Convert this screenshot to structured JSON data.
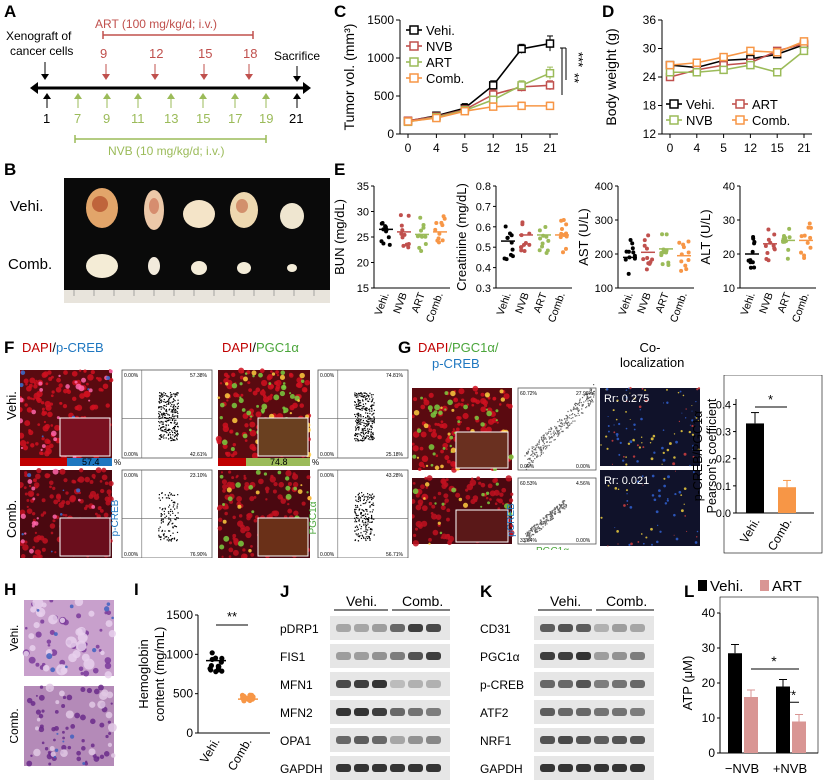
{
  "panels": {
    "A": {
      "label": "A",
      "xenograft": [
        "Xenograft of",
        "cancer cells"
      ],
      "art_label": "ART (100 mg/kg/d; i.v.)",
      "art_days": [
        "9",
        "12",
        "15",
        "18"
      ],
      "sacrifice": "Sacrifice",
      "timeline_black": [
        "1",
        "21"
      ],
      "nvb_days": [
        "7",
        "9",
        "11",
        "13",
        "15",
        "17",
        "19"
      ],
      "nvb_label": "NVB (10 mg/kg/d; i.v.)",
      "colors": {
        "art": "#c0504d",
        "nvb": "#9bbb59",
        "black": "#000000"
      }
    },
    "B": {
      "label": "B",
      "rows": [
        "Vehi.",
        "Comb."
      ]
    },
    "C": {
      "label": "C",
      "chart_data": {
        "type": "line",
        "ylabel": "Tumor vol. (mm³)",
        "categories": [
          "0",
          "4",
          "5",
          "12",
          "15",
          "21"
        ],
        "yticks": [
          "0",
          "500",
          "1000",
          "1500"
        ],
        "ylim": [
          0,
          1500
        ],
        "series": [
          {
            "name": "Vehi.",
            "color": "#000000",
            "values": [
              170,
              240,
              340,
              640,
              1120,
              1190
            ],
            "err": [
              40,
              50,
              60,
              60,
              60,
              100
            ]
          },
          {
            "name": "NVB",
            "color": "#c0504d",
            "values": [
              175,
              230,
              320,
              520,
              620,
              640
            ],
            "err": [
              40,
              40,
              50,
              60,
              60,
              60
            ]
          },
          {
            "name": "ART",
            "color": "#9bbb59",
            "values": [
              160,
              220,
              310,
              450,
              640,
              800
            ],
            "err": [
              40,
              40,
              50,
              50,
              60,
              80
            ]
          },
          {
            "name": "Comb.",
            "color": "#f79646",
            "values": [
              165,
              210,
              300,
              360,
              370,
              370
            ],
            "err": [
              40,
              40,
              40,
              50,
              50,
              50
            ]
          }
        ],
        "significance": [
          "**",
          "***"
        ],
        "legend": "top-left"
      }
    },
    "D": {
      "label": "D",
      "chart_data": {
        "type": "line",
        "ylabel": "Body weight (g)",
        "categories": [
          "0",
          "4",
          "5",
          "12",
          "15",
          "21"
        ],
        "yticks": [
          "12",
          "18",
          "24",
          "30",
          "36"
        ],
        "ylim": [
          12,
          36
        ],
        "series": [
          {
            "name": "Vehi.",
            "color": "#000000",
            "values": [
              26.5,
              26.0,
              27.5,
              27.8,
              28.8,
              30.8
            ]
          },
          {
            "name": "ART",
            "color": "#c0504d",
            "values": [
              24.0,
              25.5,
              26.5,
              27.0,
              29.5,
              31.0
            ]
          },
          {
            "name": "NVB",
            "color": "#9bbb59",
            "values": [
              25.0,
              25.0,
              25.5,
              26.5,
              25.0,
              29.5
            ]
          },
          {
            "name": "Comb.",
            "color": "#f79646",
            "values": [
              26.5,
              27.0,
              28.2,
              29.5,
              29.2,
              31.5
            ]
          }
        ],
        "legend": "bottom"
      }
    },
    "E": {
      "label": "E",
      "groups": [
        "Vehi.",
        "NVB",
        "ART",
        "Comb."
      ],
      "group_colors": [
        "#000000",
        "#c0504d",
        "#9bbb59",
        "#f79646"
      ],
      "subplots": [
        {
          "ylabel": "BUN (mg/dL)",
          "yticks": [
            "15",
            "20",
            "25",
            "30",
            "35"
          ],
          "ylim": [
            15,
            35
          ],
          "means": [
            26.5,
            26.0,
            25.5,
            26.0
          ]
        },
        {
          "ylabel": "Creatinine (mg/dL)",
          "yticks": [
            "0.3",
            "0.4",
            "0.5",
            "0.6",
            "0.7",
            "0.8"
          ],
          "ylim": [
            0.3,
            0.8
          ],
          "means": [
            0.53,
            0.56,
            0.56,
            0.56
          ]
        },
        {
          "ylabel": "AST (U/L)",
          "yticks": [
            "100",
            "200",
            "300",
            "400"
          ],
          "ylim": [
            100,
            400
          ],
          "means": [
            190,
            205,
            215,
            195
          ]
        },
        {
          "ylabel": "ALT (U/L)",
          "yticks": [
            "10",
            "20",
            "30",
            "40"
          ],
          "ylim": [
            10,
            40
          ],
          "means": [
            20,
            23,
            24,
            24
          ]
        }
      ]
    },
    "F": {
      "label": "F",
      "left_title_dapi": "DAPI",
      "left_title_slash": "/",
      "left_title_marker": "p-CREB",
      "right_title_dapi": "DAPI",
      "right_title_slash": "/",
      "right_title_marker": "PGC1α",
      "rows": [
        "Vehi.",
        "Comb."
      ],
      "bar_values": [
        "57.4",
        "23.1",
        "74.8",
        "43.3"
      ],
      "pct": "%",
      "scatter_corner_labels": [
        "0.00%",
        "57.38%",
        "0.00%",
        "42.61%",
        "0.00%",
        "23.10%",
        "0.00%",
        "76.90%",
        "0.00%",
        "74.81%",
        "0.00%",
        "25.18%",
        "0.00%",
        "43.28%",
        "0.00%",
        "56.71%"
      ],
      "axis_y": [
        "p-CREB",
        "PGC1α"
      ],
      "axis_x": "DAPI"
    },
    "G": {
      "label": "G",
      "title_dapi": "DAPI",
      "title_pgc": "/PGC1α/",
      "title_creb": "p-CREB",
      "coloc_title": [
        "Co-",
        "localization"
      ],
      "rr": [
        "Rr: 0.275",
        "Rr: 0.021"
      ],
      "axis_y": "pCREB",
      "axis_x": "PGC1α",
      "scatter_corner_labels": [
        "60.72%",
        "27.96%",
        "0.00%",
        "0.00%",
        "60.53%",
        "4.56%",
        "33.54%",
        "0.00%"
      ],
      "chart_data": {
        "type": "bar",
        "ylabel": "p-CREB/PGC1α Pearson's coefficient",
        "categories": [
          "Vehi.",
          "Comb."
        ],
        "values": [
          0.33,
          0.095
        ],
        "err": [
          0.04,
          0.025
        ],
        "colors": [
          "#000000",
          "#f79646"
        ],
        "yticks": [
          "0.0",
          "0.1",
          "0.2",
          "0.3",
          "0.4"
        ],
        "ylim": [
          0,
          0.42
        ],
        "significance": "*"
      }
    },
    "H": {
      "label": "H",
      "rows": [
        "Vehi.",
        "Comb."
      ]
    },
    "I": {
      "label": "I",
      "chart_data": {
        "type": "scatter",
        "ylabel": "Hemoglobin content (mg/mL)",
        "categories": [
          "Vehi.",
          "Comb."
        ],
        "yticks": [
          "0",
          "500",
          "1000",
          "1500"
        ],
        "ylim": [
          0,
          1500
        ],
        "means": [
          920,
          430
        ],
        "colors": [
          "#000000",
          "#f79646"
        ],
        "significance": "**"
      }
    },
    "J": {
      "label": "J",
      "groups": [
        "Vehi.",
        "Comb."
      ],
      "proteins": [
        "pDRP1",
        "FIS1",
        "MFN1",
        "MFN2",
        "OPA1",
        "GAPDH"
      ]
    },
    "K": {
      "label": "K",
      "groups": [
        "Vehi.",
        "Comb."
      ],
      "proteins": [
        "CD31",
        "PGC1α",
        "p-CREB",
        "ATF2",
        "NRF1",
        "GAPDH"
      ]
    },
    "L": {
      "label": "L",
      "chart_data": {
        "type": "bar",
        "ylabel": "ATP (μM)",
        "categories": [
          "−NVB",
          "+NVB"
        ],
        "yticks": [
          "0",
          "10",
          "20",
          "30",
          "40"
        ],
        "ylim": [
          0,
          40
        ],
        "series": [
          {
            "name": "Vehi.",
            "color": "#000000",
            "values": [
              28.5,
              19.0
            ],
            "err": [
              2.5,
              2.0
            ]
          },
          {
            "name": "ART",
            "color": "#d99694",
            "values": [
              16.0,
              9.0
            ],
            "err": [
              2.0,
              2.0
            ]
          }
        ],
        "significance": [
          "*",
          "**"
        ],
        "legend": "top"
      }
    }
  }
}
